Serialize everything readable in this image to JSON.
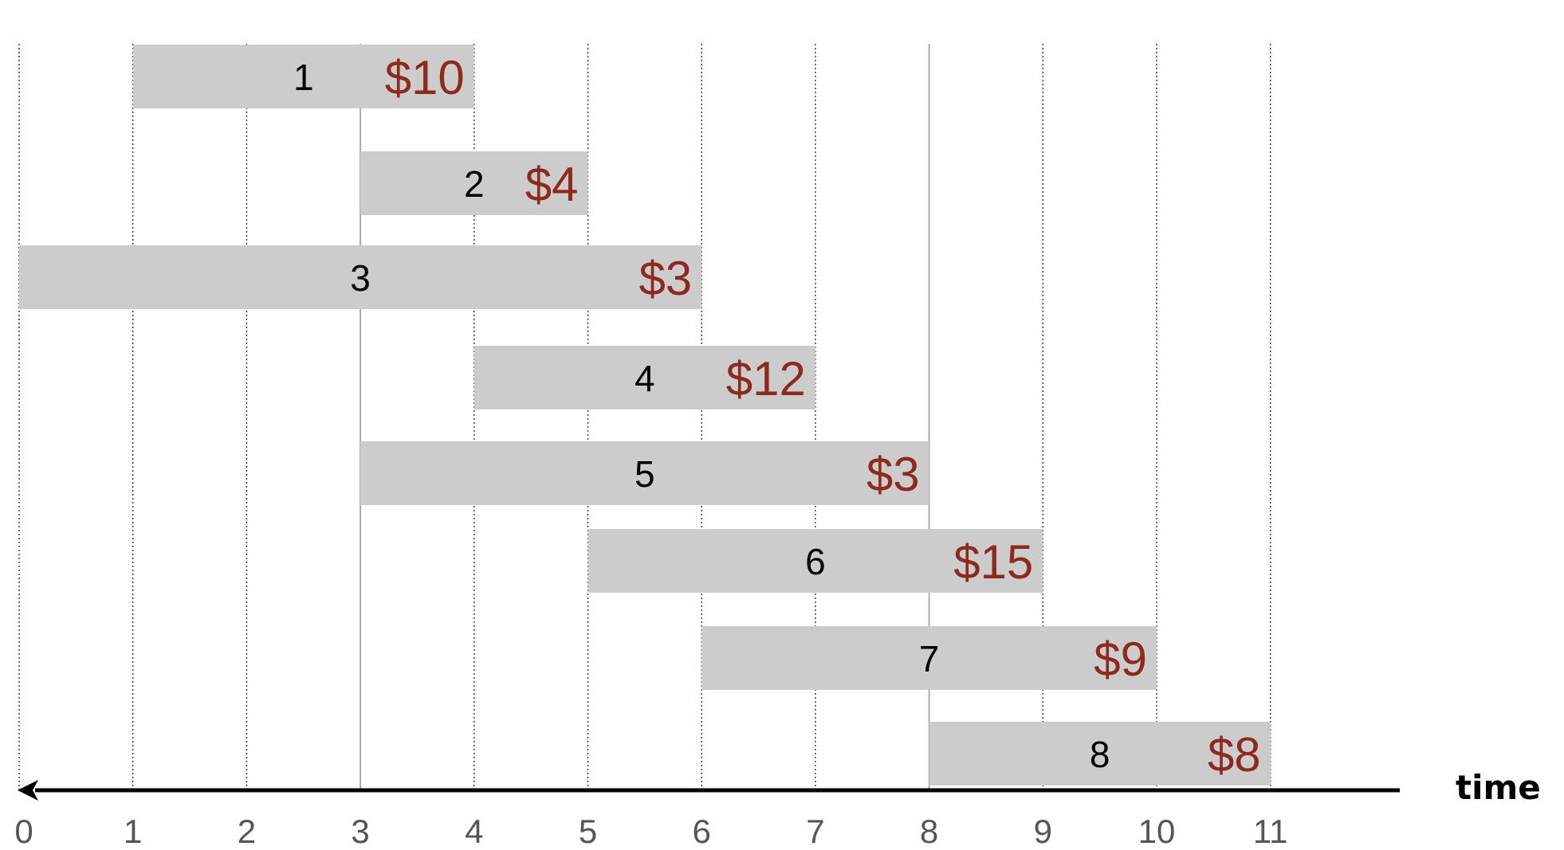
{
  "colors": {
    "bar": "#cccccc",
    "weight_text": "#8e2a1d",
    "grid": "#333333",
    "axis": "#000000"
  },
  "axis": {
    "title": "time",
    "ticks": [
      "0",
      "1",
      "2",
      "3",
      "4",
      "5",
      "6",
      "7",
      "8",
      "9",
      "10",
      "11"
    ],
    "arrow_direction": "left"
  },
  "highlight_lines": [
    3,
    8
  ],
  "jobs": [
    {
      "id": "1",
      "start": 1,
      "end": 4,
      "weight": "$10"
    },
    {
      "id": "2",
      "start": 3,
      "end": 5,
      "weight": "$4"
    },
    {
      "id": "3",
      "start": 0,
      "end": 6,
      "weight": "$3"
    },
    {
      "id": "4",
      "start": 4,
      "end": 7,
      "weight": "$12"
    },
    {
      "id": "5",
      "start": 3,
      "end": 8,
      "weight": "$3"
    },
    {
      "id": "6",
      "start": 5,
      "end": 9,
      "weight": "$15"
    },
    {
      "id": "7",
      "start": 6,
      "end": 10,
      "weight": "$9"
    },
    {
      "id": "8",
      "start": 8,
      "end": 11,
      "weight": "$8"
    }
  ]
}
